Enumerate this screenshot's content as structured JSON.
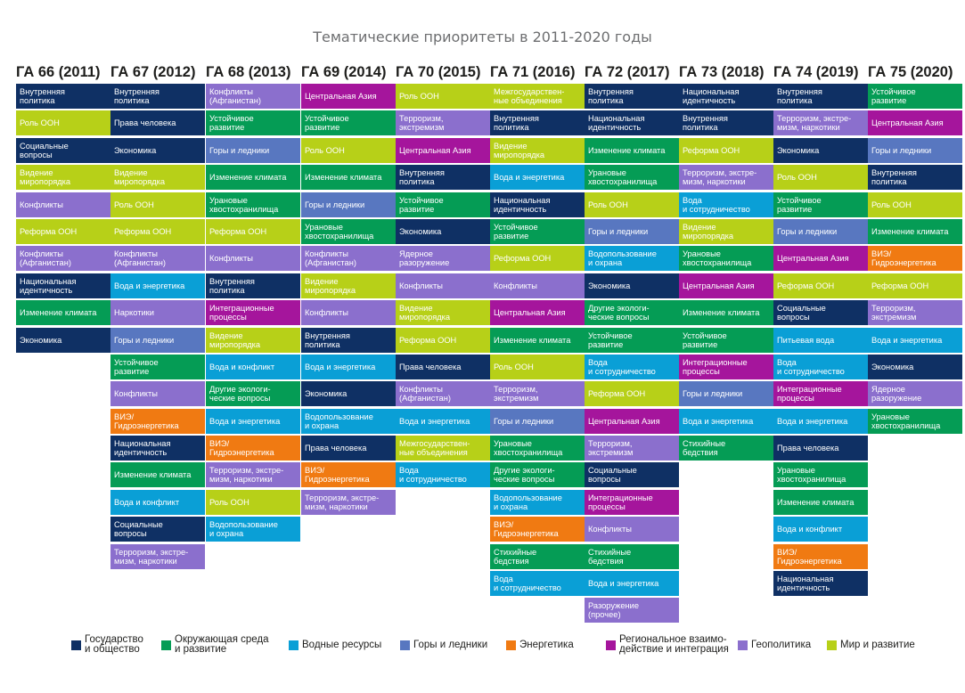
{
  "chart_data": {
    "type": "table",
    "title": "Тематические приоритеты в 2011-2020 годы",
    "categories": {
      "gov": {
        "label": "Государство\nи общество",
        "color": "#0f3064"
      },
      "env": {
        "label": "Окружающая среда\nи развитие",
        "color": "#059c55"
      },
      "water": {
        "label": "Водные ресурсы",
        "color": "#0a9fd6"
      },
      "mount": {
        "label": "Горы и ледники",
        "color": "#5877c0"
      },
      "energy": {
        "label": "Энергетика",
        "color": "#f07a12"
      },
      "reg": {
        "label": "Региональное взаимо-\nдействие и интеграция",
        "color": "#a5159c"
      },
      "geo": {
        "label": "Геополитика",
        "color": "#8b6fcd"
      },
      "peace": {
        "label": "Мир и развитие",
        "color": "#b7d018"
      }
    },
    "legend_order": [
      "gov",
      "env",
      "water",
      "mount",
      "energy",
      "reg",
      "geo",
      "peace"
    ],
    "columns": [
      {
        "header": "ГА 66 (2011)",
        "items": [
          {
            "t": "Внутренняя\nполитика",
            "c": "gov"
          },
          {
            "t": "Роль ООН",
            "c": "peace"
          },
          {
            "t": "Социальные\nвопросы",
            "c": "gov"
          },
          {
            "t": "Видение\nмиропорядка",
            "c": "peace"
          },
          {
            "t": "Конфликты",
            "c": "geo"
          },
          {
            "t": "Реформа ООН",
            "c": "peace"
          },
          {
            "t": "Конфликты\n(Афганистан)",
            "c": "geo"
          },
          {
            "t": "Национальная\nидентичность",
            "c": "gov"
          },
          {
            "t": "Изменение климата",
            "c": "env"
          },
          {
            "t": "Экономика",
            "c": "gov"
          }
        ]
      },
      {
        "header": "ГА 67 (2012)",
        "items": [
          {
            "t": "Внутренняя\nполитика",
            "c": "gov"
          },
          {
            "t": "Права человека",
            "c": "gov"
          },
          {
            "t": "Экономика",
            "c": "gov"
          },
          {
            "t": "Видение\nмиропорядка",
            "c": "peace"
          },
          {
            "t": "Роль ООН",
            "c": "peace"
          },
          {
            "t": "Реформа ООН",
            "c": "peace"
          },
          {
            "t": "Конфликты\n(Афганистан)",
            "c": "geo"
          },
          {
            "t": "Вода и энергетика",
            "c": "water"
          },
          {
            "t": "Наркотики",
            "c": "geo"
          },
          {
            "t": "Горы и ледники",
            "c": "mount"
          },
          {
            "t": "Устойчивое\nразвитие",
            "c": "env"
          },
          {
            "t": "Конфликты",
            "c": "geo"
          },
          {
            "t": "ВИЭ/\nГидроэнергетика",
            "c": "energy"
          },
          {
            "t": "Национальная\nидентичность",
            "c": "gov"
          },
          {
            "t": "Изменение климата",
            "c": "env"
          },
          {
            "t": "Вода и конфликт",
            "c": "water"
          },
          {
            "t": "Социальные\nвопросы",
            "c": "gov"
          },
          {
            "t": "Терроризм, экстре-\nмизм, наркотики",
            "c": "geo"
          }
        ]
      },
      {
        "header": "ГА 68 (2013)",
        "items": [
          {
            "t": "Конфликты\n(Афганистан)",
            "c": "geo"
          },
          {
            "t": "Устойчивое\nразвитие",
            "c": "env"
          },
          {
            "t": "Горы и ледники",
            "c": "mount"
          },
          {
            "t": "Изменение климата",
            "c": "env"
          },
          {
            "t": "Урановые\nхвостохранилища",
            "c": "env"
          },
          {
            "t": "Реформа ООН",
            "c": "peace"
          },
          {
            "t": "Конфликты",
            "c": "geo"
          },
          {
            "t": "Внутренняя\nполитика",
            "c": "gov"
          },
          {
            "t": "Интеграционные\nпроцессы",
            "c": "reg"
          },
          {
            "t": "Видение\nмиропорядка",
            "c": "peace"
          },
          {
            "t": "Вода и конфликт",
            "c": "water"
          },
          {
            "t": "Другие экологи-\nческие вопросы",
            "c": "env"
          },
          {
            "t": "Вода и энергетика",
            "c": "water"
          },
          {
            "t": "ВИЭ/\nГидроэнергетика",
            "c": "energy"
          },
          {
            "t": "Терроризм, экстре-\nмизм, наркотики",
            "c": "geo"
          },
          {
            "t": "Роль ООН",
            "c": "peace"
          },
          {
            "t": "Водопользование\nи охрана",
            "c": "water"
          }
        ]
      },
      {
        "header": "ГА 69 (2014)",
        "items": [
          {
            "t": "Центральная Азия",
            "c": "reg"
          },
          {
            "t": "Устойчивое\nразвитие",
            "c": "env"
          },
          {
            "t": "Роль ООН",
            "c": "peace"
          },
          {
            "t": "Изменение климата",
            "c": "env"
          },
          {
            "t": "Горы и ледники",
            "c": "mount"
          },
          {
            "t": "Урановые\nхвостохранилища",
            "c": "env"
          },
          {
            "t": "Конфликты\n(Афганистан)",
            "c": "geo"
          },
          {
            "t": "Видение\nмиропорядка",
            "c": "peace"
          },
          {
            "t": "Конфликты",
            "c": "geo"
          },
          {
            "t": "Внутренняя\nполитика",
            "c": "gov"
          },
          {
            "t": "Вода и энергетика",
            "c": "water"
          },
          {
            "t": "Экономика",
            "c": "gov"
          },
          {
            "t": "Водопользование\nи охрана",
            "c": "water"
          },
          {
            "t": "Права человека",
            "c": "gov"
          },
          {
            "t": "ВИЭ/\nГидроэнергетика",
            "c": "energy"
          },
          {
            "t": "Терроризм, экстре-\nмизм, наркотики",
            "c": "geo"
          }
        ]
      },
      {
        "header": "ГА 70 (2015)",
        "items": [
          {
            "t": "Роль ООН",
            "c": "peace"
          },
          {
            "t": "Терроризм,\nэкстремизм",
            "c": "geo"
          },
          {
            "t": "Центральная Азия",
            "c": "reg"
          },
          {
            "t": "Внутренняя\nполитика",
            "c": "gov"
          },
          {
            "t": "Устойчивое\nразвитие",
            "c": "env"
          },
          {
            "t": "Экономика",
            "c": "gov"
          },
          {
            "t": "Ядерное\nразоружение",
            "c": "geo"
          },
          {
            "t": "Конфликты",
            "c": "geo"
          },
          {
            "t": "Видение\nмиропорядка",
            "c": "peace"
          },
          {
            "t": "Реформа ООН",
            "c": "peace"
          },
          {
            "t": "Права человека",
            "c": "gov"
          },
          {
            "t": "Конфликты\n(Афганистан)",
            "c": "geo"
          },
          {
            "t": "Вода и энергетика",
            "c": "water"
          },
          {
            "t": "Межгосударствен-\nные объединения",
            "c": "peace"
          },
          {
            "t": "Вода\nи сотрудничество",
            "c": "water"
          }
        ]
      },
      {
        "header": "ГА 71 (2016)",
        "items": [
          {
            "t": "Межгосударствен-\nные объединения",
            "c": "peace"
          },
          {
            "t": "Внутренняя\nполитика",
            "c": "gov"
          },
          {
            "t": "Видение\nмиропорядка",
            "c": "peace"
          },
          {
            "t": "Вода и энергетика",
            "c": "water"
          },
          {
            "t": "Национальная\nидентичность",
            "c": "gov"
          },
          {
            "t": "Устойчивое\nразвитие",
            "c": "env"
          },
          {
            "t": "Реформа ООН",
            "c": "peace"
          },
          {
            "t": "Конфликты",
            "c": "geo"
          },
          {
            "t": "Центральная Азия",
            "c": "reg"
          },
          {
            "t": "Изменение климата",
            "c": "env"
          },
          {
            "t": "Роль ООН",
            "c": "peace"
          },
          {
            "t": "Терроризм,\nэкстремизм",
            "c": "geo"
          },
          {
            "t": "Горы и ледники",
            "c": "mount"
          },
          {
            "t": "Урановые\nхвостохранилища",
            "c": "env"
          },
          {
            "t": "Другие экологи-\nческие вопросы",
            "c": "env"
          },
          {
            "t": "Водопользование\nи охрана",
            "c": "water"
          },
          {
            "t": "ВИЭ/\nГидроэнергетика",
            "c": "energy"
          },
          {
            "t": "Стихийные\nбедствия",
            "c": "env"
          },
          {
            "t": "Вода\nи сотрудничество",
            "c": "water"
          }
        ]
      },
      {
        "header": "ГА 72 (2017)",
        "items": [
          {
            "t": "Внутренняя\nполитика",
            "c": "gov"
          },
          {
            "t": "Национальная\nидентичность",
            "c": "gov"
          },
          {
            "t": "Изменение климата",
            "c": "env"
          },
          {
            "t": "Урановые\nхвостохранилища",
            "c": "env"
          },
          {
            "t": "Роль ООН",
            "c": "peace"
          },
          {
            "t": "Горы и ледники",
            "c": "mount"
          },
          {
            "t": "Водопользование\nи охрана",
            "c": "water"
          },
          {
            "t": "Экономика",
            "c": "gov"
          },
          {
            "t": "Другие экологи-\nческие вопросы",
            "c": "env"
          },
          {
            "t": "Устойчивое\nразвитие",
            "c": "env"
          },
          {
            "t": "Вода\nи сотрудничество",
            "c": "water"
          },
          {
            "t": "Реформа ООН",
            "c": "peace"
          },
          {
            "t": "Центральная Азия",
            "c": "reg"
          },
          {
            "t": "Терроризм,\nэкстремизм",
            "c": "geo"
          },
          {
            "t": "Социальные\nвопросы",
            "c": "gov"
          },
          {
            "t": "Интеграционные\nпроцессы",
            "c": "reg"
          },
          {
            "t": "Конфликты",
            "c": "geo"
          },
          {
            "t": "Стихийные\nбедствия",
            "c": "env"
          },
          {
            "t": "Вода и энергетика",
            "c": "water"
          },
          {
            "t": "Разоружение\n(прочее)",
            "c": "geo"
          }
        ]
      },
      {
        "header": "ГА 73 (2018)",
        "items": [
          {
            "t": "Национальная\nидентичность",
            "c": "gov"
          },
          {
            "t": "Внутренняя\nполитика",
            "c": "gov"
          },
          {
            "t": "Реформа ООН",
            "c": "peace"
          },
          {
            "t": "Терроризм, экстре-\nмизм, наркотики",
            "c": "geo"
          },
          {
            "t": "Вода\nи сотрудничество",
            "c": "water"
          },
          {
            "t": "Видение\nмиропорядка",
            "c": "peace"
          },
          {
            "t": "Урановые\nхвостохранилища",
            "c": "env"
          },
          {
            "t": "Центральная Азия",
            "c": "reg"
          },
          {
            "t": "Изменение климата",
            "c": "env"
          },
          {
            "t": "Устойчивое\nразвитие",
            "c": "env"
          },
          {
            "t": "Интеграционные\nпроцессы",
            "c": "reg"
          },
          {
            "t": "Горы и ледники",
            "c": "mount"
          },
          {
            "t": "Вода и энергетика",
            "c": "water"
          },
          {
            "t": "Стихийные\nбедствия",
            "c": "env"
          }
        ]
      },
      {
        "header": "ГА 74 (2019)",
        "items": [
          {
            "t": "Внутренняя\nполитика",
            "c": "gov"
          },
          {
            "t": "Терроризм, экстре-\nмизм, наркотики",
            "c": "geo"
          },
          {
            "t": "Экономика",
            "c": "gov"
          },
          {
            "t": "Роль ООН",
            "c": "peace"
          },
          {
            "t": "Устойчивое\nразвитие",
            "c": "env"
          },
          {
            "t": "Горы и ледники",
            "c": "mount"
          },
          {
            "t": "Центральная Азия",
            "c": "reg"
          },
          {
            "t": "Реформа ООН",
            "c": "peace"
          },
          {
            "t": "Социальные\nвопросы",
            "c": "gov"
          },
          {
            "t": "Питьевая вода",
            "c": "water"
          },
          {
            "t": "Вода\nи сотрудничество",
            "c": "water"
          },
          {
            "t": "Интеграционные\nпроцессы",
            "c": "reg"
          },
          {
            "t": "Вода и энергетика",
            "c": "water"
          },
          {
            "t": "Права человека",
            "c": "gov"
          },
          {
            "t": "Урановые\nхвостохранилища",
            "c": "env"
          },
          {
            "t": "Изменение климата",
            "c": "env"
          },
          {
            "t": "Вода и конфликт",
            "c": "water"
          },
          {
            "t": "ВИЭ/\nГидроэнергетика",
            "c": "energy"
          },
          {
            "t": "Национальная\nидентичность",
            "c": "gov"
          }
        ]
      },
      {
        "header": "ГА 75 (2020)",
        "items": [
          {
            "t": "Устойчивое\nразвитие",
            "c": "env"
          },
          {
            "t": "Центральная Азия",
            "c": "reg"
          },
          {
            "t": "Горы и ледники",
            "c": "mount"
          },
          {
            "t": "Внутренняя\nполитика",
            "c": "gov"
          },
          {
            "t": "Роль ООН",
            "c": "peace"
          },
          {
            "t": "Изменение климата",
            "c": "env"
          },
          {
            "t": "ВИЭ/\nГидроэнергетика",
            "c": "energy"
          },
          {
            "t": "Реформа ООН",
            "c": "peace"
          },
          {
            "t": "Терроризм,\nэкстремизм",
            "c": "geo"
          },
          {
            "t": "Вода и энергетика",
            "c": "water"
          },
          {
            "t": "Экономика",
            "c": "gov"
          },
          {
            "t": "Ядерное\nразоружение",
            "c": "geo"
          },
          {
            "t": "Урановые\nхвостохранилища",
            "c": "env"
          }
        ]
      }
    ]
  }
}
